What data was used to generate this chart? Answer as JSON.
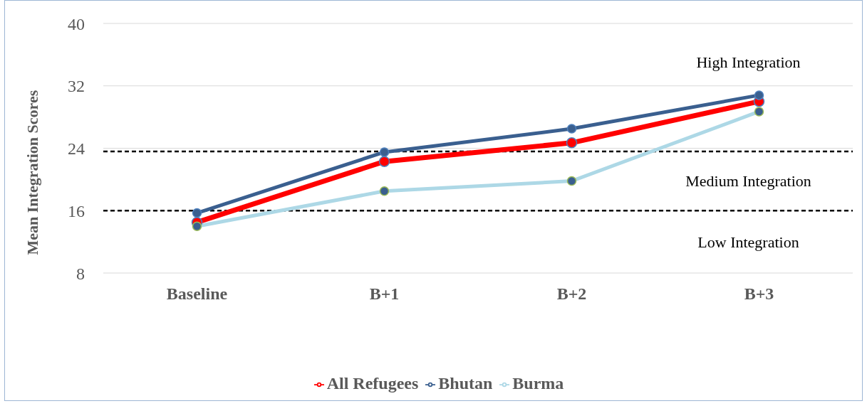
{
  "chart_data": {
    "type": "line",
    "ylabel": "Mean Integration Scores",
    "categories": [
      "Baseline",
      "B+1",
      "B+2",
      "B+3"
    ],
    "series": [
      {
        "name": "All Refugees",
        "color": "#ff0000",
        "values": [
          14.5,
          22.3,
          24.7,
          30.0
        ]
      },
      {
        "name": "Bhutan",
        "color": "#3a5f8f",
        "values": [
          15.7,
          23.5,
          26.5,
          30.8
        ]
      },
      {
        "name": "Burma",
        "color": "#add8e6",
        "values": [
          14.0,
          18.5,
          19.8,
          28.7
        ]
      }
    ],
    "ylim": [
      8,
      40
    ],
    "yticks": [
      8,
      16,
      24,
      32,
      40
    ],
    "grid": "y",
    "legend": "bottom",
    "marker": "circle",
    "line_style": "solid",
    "ref_lines": [
      {
        "axis": "y",
        "value": 23.6,
        "color": "#000000",
        "line_style": "dashed"
      },
      {
        "axis": "y",
        "value": 16.0,
        "color": "#000000",
        "line_style": "dashed"
      }
    ],
    "annotations": [
      "High Integration",
      "Medium Integration",
      "Low Integration"
    ]
  }
}
